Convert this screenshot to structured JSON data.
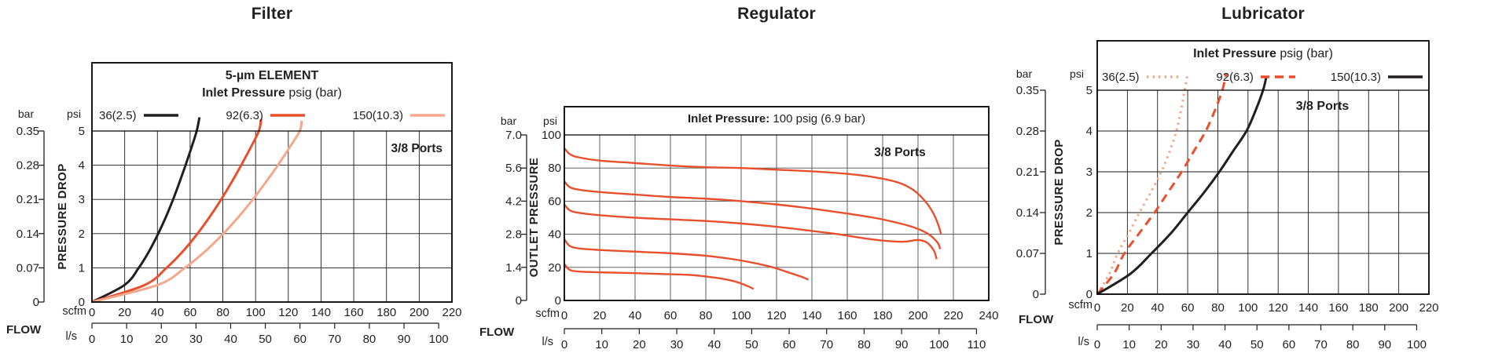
{
  "page": {
    "background": "#ffffff",
    "text_color": "#231f20"
  },
  "colors": {
    "black_curve": "#231f20",
    "red_curve": "#e8502d",
    "pink_curve": "#f5a78c",
    "grid": "#1a1a1a",
    "grid_regulator": "#4d4d4d",
    "frame": "#000000"
  },
  "chart_data": [
    {
      "type": "line",
      "title": "Filter",
      "header": {
        "line1": "5-µm ELEMENT",
        "line2_bold": "Inlet Pressure",
        "line2_rest": " psig (bar)"
      },
      "ports_label": "3/8 Ports",
      "x_axis": {
        "label": "FLOW",
        "unit_primary": "scfm",
        "unit_secondary": "l/s",
        "scfm_ticks": [
          0,
          20,
          40,
          60,
          80,
          100,
          120,
          140,
          160,
          180,
          200,
          220
        ],
        "scfm_max": 220,
        "ls_ticks": [
          0,
          10,
          20,
          30,
          40,
          50,
          60,
          70,
          80,
          90,
          100
        ],
        "scfm_per_ls": 2.119
      },
      "y_axis": {
        "unit_left": "bar",
        "unit_right": "psi",
        "label": "PRESSURE DROP",
        "bar_ticks": [
          "0.35",
          "0.28",
          "0.21",
          "0.14",
          "0.07",
          "0"
        ],
        "psi_ticks": [
          "5",
          "4",
          "3",
          "2",
          "1",
          "0"
        ],
        "psi_max": 5
      },
      "legend": [
        {
          "label": "36(2.5)",
          "color": "#231f20",
          "dash": "solid"
        },
        {
          "label": "92(6.3)",
          "color": "#e8502d",
          "dash": "solid"
        },
        {
          "label": "150(10.3)",
          "color": "#f5a78c",
          "dash": "solid"
        }
      ],
      "series": [
        {
          "name": "36(2.5)",
          "color": "#231f20",
          "dash": "solid",
          "width": 3,
          "points_scfm_psi": [
            [
              0,
              0
            ],
            [
              20,
              0.5
            ],
            [
              28.6,
              1
            ],
            [
              35.1,
              1.5
            ],
            [
              40.5,
              2
            ],
            [
              45.3,
              2.5
            ],
            [
              49.6,
              3
            ],
            [
              53.5,
              3.5
            ],
            [
              57.2,
              4
            ],
            [
              60.7,
              4.5
            ],
            [
              64,
              5
            ],
            [
              65.7,
              5.4
            ]
          ]
        },
        {
          "name": "92(6.3)",
          "color": "#e8502d",
          "dash": "solid",
          "width": 3,
          "points_scfm_psi": [
            [
              0,
              0
            ],
            [
              32.3,
              0.5
            ],
            [
              45.6,
              1
            ],
            [
              55.9,
              1.5
            ],
            [
              64.5,
              2
            ],
            [
              72.1,
              2.5
            ],
            [
              79,
              3
            ],
            [
              85.3,
              3.5
            ],
            [
              91.2,
              4
            ],
            [
              96.8,
              4.5
            ],
            [
              102,
              5
            ],
            [
              103.4,
              5.35
            ]
          ]
        },
        {
          "name": "150(10.3)",
          "color": "#f5a78c",
          "dash": "solid",
          "width": 3,
          "points_scfm_psi": [
            [
              0,
              0
            ],
            [
              40.2,
              0.5
            ],
            [
              56.8,
              1
            ],
            [
              69.6,
              1.5
            ],
            [
              80.3,
              2
            ],
            [
              89.8,
              2.5
            ],
            [
              98.4,
              3
            ],
            [
              106.2,
              3.5
            ],
            [
              113.6,
              4
            ],
            [
              120.5,
              4.5
            ],
            [
              127,
              5
            ],
            [
              128.2,
              5.3
            ]
          ]
        }
      ]
    },
    {
      "type": "line",
      "title": "Regulator",
      "header": {
        "line1_bold": "Inlet Pressure:",
        "line1_rest": " 100 psig (6.9 bar)"
      },
      "ports_label": "3/8 Ports",
      "x_axis": {
        "label": "FLOW",
        "unit_primary": "scfm",
        "unit_secondary": "l/s",
        "scfm_ticks": [
          0,
          20,
          40,
          60,
          80,
          100,
          120,
          140,
          160,
          180,
          200,
          220,
          240
        ],
        "scfm_max": 240,
        "ls_ticks": [
          0,
          10,
          20,
          30,
          40,
          50,
          60,
          70,
          80,
          90,
          100,
          110
        ],
        "scfm_per_ls": 2.119
      },
      "y_axis": {
        "unit_left": "bar",
        "unit_right": "psi",
        "label": "OUTLET PRESSURE",
        "bar_ticks": [
          "7.0",
          "5.6",
          "4.2",
          "2.8",
          "1.4",
          "0"
        ],
        "psi_ticks": [
          "100",
          "80",
          "60",
          "40",
          "20",
          "0"
        ],
        "psi_max": 100
      },
      "legend": [],
      "series": [
        {
          "name": "curve_1",
          "color": "#e8502d",
          "dash": "solid",
          "width": 2.4,
          "points_scfm_psi": [
            [
              0,
              92
            ],
            [
              3,
              88.5
            ],
            [
              8,
              86.5
            ],
            [
              20,
              84.5
            ],
            [
              40,
              83
            ],
            [
              60,
              81.5
            ],
            [
              80,
              80.5
            ],
            [
              100,
              80
            ],
            [
              120,
              79
            ],
            [
              140,
              78
            ],
            [
              160,
              76.5
            ],
            [
              175,
              74.5
            ],
            [
              188,
              71.5
            ],
            [
              197,
              67
            ],
            [
              204,
              60
            ],
            [
              209,
              52
            ],
            [
              212,
              44
            ],
            [
              213,
              40
            ]
          ]
        },
        {
          "name": "curve_2",
          "color": "#e8502d",
          "dash": "solid",
          "width": 2.4,
          "points_scfm_psi": [
            [
              0,
              72
            ],
            [
              3,
              68.5
            ],
            [
              8,
              67
            ],
            [
              20,
              65.5
            ],
            [
              40,
              64
            ],
            [
              60,
              62.5
            ],
            [
              80,
              61.5
            ],
            [
              100,
              60
            ],
            [
              120,
              58
            ],
            [
              140,
              55.5
            ],
            [
              160,
              52.5
            ],
            [
              175,
              50
            ],
            [
              188,
              47
            ],
            [
              198,
              44
            ],
            [
              206,
              40
            ],
            [
              211,
              35
            ],
            [
              212.5,
              31
            ]
          ]
        },
        {
          "name": "curve_3",
          "color": "#e8502d",
          "dash": "solid",
          "width": 2.4,
          "points_scfm_psi": [
            [
              0,
              58
            ],
            [
              3,
              54.5
            ],
            [
              8,
              53
            ],
            [
              20,
              51.5
            ],
            [
              40,
              50
            ],
            [
              60,
              49
            ],
            [
              80,
              48
            ],
            [
              100,
              46.5
            ],
            [
              120,
              44.5
            ],
            [
              140,
              42
            ],
            [
              155,
              40
            ],
            [
              170,
              37.5
            ],
            [
              182,
              36
            ],
            [
              192,
              35.5
            ],
            [
              200,
              36.5
            ],
            [
              205,
              35
            ],
            [
              209,
              30
            ],
            [
              210.5,
              25
            ]
          ]
        },
        {
          "name": "curve_4",
          "color": "#e8502d",
          "dash": "solid",
          "width": 2.4,
          "points_scfm_psi": [
            [
              0,
              37
            ],
            [
              3,
              33
            ],
            [
              8,
              31.5
            ],
            [
              20,
              30.5
            ],
            [
              40,
              29.5
            ],
            [
              60,
              28.5
            ],
            [
              80,
              27
            ],
            [
              95,
              25
            ],
            [
              108,
              22.5
            ],
            [
              118,
              20
            ],
            [
              128,
              16.5
            ],
            [
              135,
              14
            ],
            [
              138,
              12.5
            ]
          ]
        },
        {
          "name": "curve_5",
          "color": "#e8502d",
          "dash": "solid",
          "width": 2.4,
          "points_scfm_psi": [
            [
              0,
              22
            ],
            [
              3,
              18.5
            ],
            [
              8,
              17.5
            ],
            [
              20,
              17
            ],
            [
              40,
              16.5
            ],
            [
              55,
              16
            ],
            [
              70,
              15.5
            ],
            [
              80,
              14.5
            ],
            [
              90,
              13
            ],
            [
              98,
              11
            ],
            [
              104,
              8.5
            ],
            [
              107,
              7
            ]
          ]
        }
      ]
    },
    {
      "type": "line",
      "title": "Lubricator",
      "header": {
        "line1_bold": "Inlet Pressure",
        "line1_rest": " psig (bar)"
      },
      "ports_label": "3/8 Ports",
      "x_axis": {
        "label": "FLOW",
        "unit_primary": "scfm",
        "unit_secondary": "l/s",
        "scfm_ticks": [
          0,
          20,
          40,
          60,
          80,
          100,
          120,
          140,
          160,
          180,
          200,
          220
        ],
        "scfm_max": 220,
        "ls_ticks": [
          0,
          10,
          20,
          30,
          40,
          50,
          60,
          70,
          80,
          90,
          100
        ],
        "scfm_per_ls": 2.119
      },
      "y_axis": {
        "unit_left": "bar",
        "unit_right": "psi",
        "label": "PRESSURE DROP",
        "bar_ticks": [
          "0.35",
          "0.28",
          "0.21",
          "0.14",
          "0.07",
          "0"
        ],
        "psi_ticks": [
          "5",
          "4",
          "3",
          "2",
          "1",
          "0"
        ],
        "psi_max": 5
      },
      "legend": [
        {
          "label": "36(2.5)",
          "color": "#f5a78c",
          "dash": "dotted"
        },
        {
          "label": "92(6.3)",
          "color": "#e8502d",
          "dash": "dashed"
        },
        {
          "label": "150(10.3)",
          "color": "#231f20",
          "dash": "solid"
        }
      ],
      "series": [
        {
          "name": "36(2.5)",
          "color": "#f5a78c",
          "dash": "dotted",
          "width": 3,
          "points_scfm_psi": [
            [
              0,
              0
            ],
            [
              8,
              0.5
            ],
            [
              13.5,
              1
            ],
            [
              21,
              1.5
            ],
            [
              28,
              2
            ],
            [
              35.5,
              2.5
            ],
            [
              42.5,
              3
            ],
            [
              48,
              3.5
            ],
            [
              52.5,
              4
            ],
            [
              55.5,
              4.5
            ],
            [
              58,
              5
            ],
            [
              60,
              5.4
            ]
          ]
        },
        {
          "name": "92(6.3)",
          "color": "#e8502d",
          "dash": "dashed",
          "width": 3,
          "points_scfm_psi": [
            [
              0,
              0
            ],
            [
              11,
              0.5
            ],
            [
              18,
              1
            ],
            [
              28,
              1.5
            ],
            [
              38,
              2
            ],
            [
              47,
              2.5
            ],
            [
              56,
              3
            ],
            [
              64,
              3.5
            ],
            [
              72,
              4
            ],
            [
              78,
              4.5
            ],
            [
              83,
              5
            ],
            [
              85.5,
              5.4
            ]
          ]
        },
        {
          "name": "150(10.3)",
          "color": "#231f20",
          "dash": "solid",
          "width": 3,
          "points_scfm_psi": [
            [
              0,
              0
            ],
            [
              22,
              0.5
            ],
            [
              36,
              1
            ],
            [
              49,
              1.5
            ],
            [
              60,
              2
            ],
            [
              71,
              2.5
            ],
            [
              81,
              3
            ],
            [
              90,
              3.5
            ],
            [
              99,
              4
            ],
            [
              105,
              4.5
            ],
            [
              110,
              5
            ],
            [
              112,
              5.3
            ]
          ]
        }
      ]
    }
  ]
}
